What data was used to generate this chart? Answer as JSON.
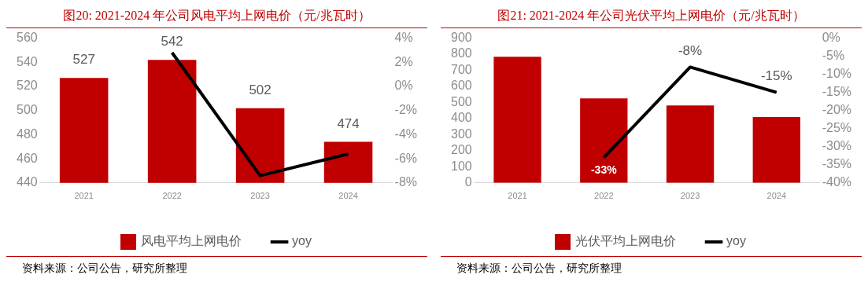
{
  "chart_data": [
    {
      "type": "bar",
      "title": "图20:   2021-2024 年公司风电平均上网电价（元/兆瓦时）",
      "categories": [
        "2021",
        "2022",
        "2023",
        "2024"
      ],
      "series": [
        {
          "name": "风电平均上网电价",
          "color": "#c00000",
          "values": [
            527,
            542,
            502,
            474
          ],
          "value_labels": [
            "527",
            "542",
            "502",
            "474"
          ]
        },
        {
          "name": "yoy",
          "type": "line",
          "axis": "y2",
          "color": "#000000",
          "values": [
            null,
            2.8,
            -7.4,
            -5.6
          ]
        }
      ],
      "ylim": [
        440,
        560
      ],
      "yticks": [
        440,
        460,
        480,
        500,
        520,
        540,
        560
      ],
      "y2lim": [
        -8,
        4
      ],
      "y2ticks": [
        {
          "value": -8,
          "label": "-8%"
        },
        {
          "value": -6,
          "label": "-6%"
        },
        {
          "value": -4,
          "label": "-4%"
        },
        {
          "value": -2,
          "label": "-2%"
        },
        {
          "value": 0,
          "label": "0%"
        },
        {
          "value": 2,
          "label": "2%"
        },
        {
          "value": 4,
          "label": "4%"
        }
      ],
      "grid": false,
      "legend": "bottom",
      "marker": "none",
      "line_style": "solid",
      "annotations": [
        "资料来源：公司公告，研究所整理"
      ]
    },
    {
      "type": "bar",
      "title": "图21:   2021-2024 年公司光伏平均上网电价（元/兆瓦时）",
      "categories": [
        "2021",
        "2022",
        "2023",
        "2024"
      ],
      "series": [
        {
          "name": "光伏平均上网电价",
          "color": "#c00000",
          "values": [
            785,
            525,
            482,
            410
          ]
        },
        {
          "name": "yoy",
          "type": "line",
          "axis": "y2",
          "color": "#000000",
          "values": [
            null,
            -33,
            -8,
            -15
          ],
          "value_labels": [
            null,
            "-33%",
            "-8%",
            "-15%"
          ]
        }
      ],
      "ylim": [
        0,
        900
      ],
      "yticks": [
        0,
        100,
        200,
        300,
        400,
        500,
        600,
        700,
        800,
        900
      ],
      "y2lim": [
        -40,
        0
      ],
      "y2ticks": [
        {
          "value": -40,
          "label": "-40%"
        },
        {
          "value": -35,
          "label": "-35%"
        },
        {
          "value": -30,
          "label": "-30%"
        },
        {
          "value": -25,
          "label": "-25%"
        },
        {
          "value": -20,
          "label": "-20%"
        },
        {
          "value": -15,
          "label": "-15%"
        },
        {
          "value": -10,
          "label": "-10%"
        },
        {
          "value": -5,
          "label": "-5%"
        },
        {
          "value": 0,
          "label": "0%"
        }
      ],
      "grid": false,
      "legend": "bottom",
      "marker": "none",
      "line_style": "solid",
      "annotations": [
        "资料来源：公司公告，研究所整理"
      ]
    }
  ]
}
